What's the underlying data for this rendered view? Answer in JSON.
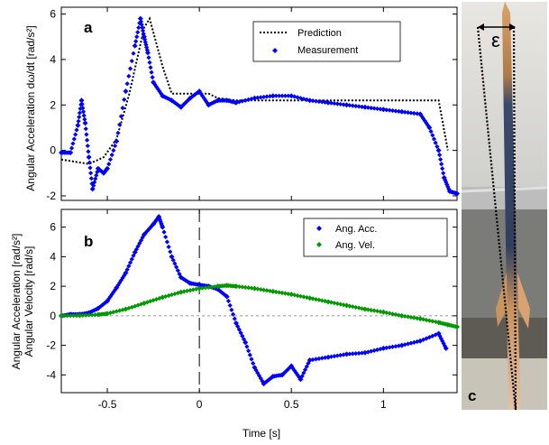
{
  "chart_data": [
    {
      "type": "line",
      "panel_label": "a",
      "xlabel": "",
      "ylabel": "Angular Acceleration dω/dt  [rad/s²]",
      "xlim": [
        -0.75,
        1.4
      ],
      "ylim": [
        -2.2,
        6.3
      ],
      "yticks": [
        -2,
        0,
        2,
        4,
        6
      ],
      "grid": false,
      "legend_position": "top-right",
      "series": [
        {
          "name": "Prediction",
          "style": "dotted-line",
          "color": "#000000",
          "x": [
            -0.75,
            -0.6,
            -0.52,
            -0.45,
            -0.38,
            -0.3,
            -0.27,
            -0.2,
            -0.15,
            -0.05,
            0.05,
            0.1,
            0.2,
            0.6,
            1.0,
            1.3,
            1.35
          ],
          "y": [
            -0.4,
            -0.6,
            -0.3,
            0.5,
            2.5,
            5.4,
            5.8,
            3.7,
            2.5,
            2.5,
            2.5,
            2.3,
            2.2,
            2.2,
            2.2,
            2.2,
            0.0
          ]
        },
        {
          "name": "Measurement",
          "style": "diamond-markers",
          "color": "#0000ff",
          "x": [
            -0.75,
            -0.7,
            -0.66,
            -0.64,
            -0.62,
            -0.6,
            -0.58,
            -0.55,
            -0.52,
            -0.5,
            -0.45,
            -0.4,
            -0.35,
            -0.32,
            -0.3,
            -0.28,
            -0.25,
            -0.2,
            -0.15,
            -0.1,
            -0.05,
            0.0,
            0.05,
            0.1,
            0.15,
            0.2,
            0.3,
            0.4,
            0.5,
            0.6,
            0.7,
            0.8,
            0.9,
            1.0,
            1.1,
            1.2,
            1.25,
            1.3,
            1.33,
            1.36,
            1.4
          ],
          "y": [
            -0.1,
            -0.1,
            1.1,
            2.2,
            1.2,
            -0.3,
            -1.7,
            -0.8,
            -1.0,
            -0.8,
            0.4,
            2.6,
            4.6,
            5.8,
            5.0,
            4.3,
            3.0,
            2.4,
            2.2,
            1.9,
            2.3,
            2.6,
            2.0,
            2.2,
            2.2,
            2.1,
            2.3,
            2.4,
            2.4,
            2.2,
            2.1,
            2.0,
            1.9,
            1.8,
            1.7,
            1.6,
            1.0,
            0.0,
            -1.2,
            -1.8,
            -1.9
          ]
        }
      ]
    },
    {
      "type": "scatter",
      "panel_label": "b",
      "xlabel": "Time [s]",
      "ylabel": "Angular Acceleration [rad/s²]\nAngular Velocity [rad/s]",
      "xlim": [
        -0.75,
        1.4
      ],
      "ylim": [
        -5.2,
        7.2
      ],
      "xticks": [
        -0.5,
        0,
        0.5,
        1
      ],
      "xtick_labels": [
        "-0.5",
        "0",
        "0.5",
        "1"
      ],
      "yticks": [
        -4,
        -2,
        0,
        2,
        4,
        6
      ],
      "grid": false,
      "reference_lines": {
        "y_zero": "dashed gray",
        "x_zero": "dashed black"
      },
      "legend_position": "top-right",
      "series": [
        {
          "name": "Ang. Acc.",
          "style": "diamond-markers",
          "color": "#0000ff",
          "x": [
            -0.75,
            -0.7,
            -0.65,
            -0.6,
            -0.55,
            -0.5,
            -0.45,
            -0.4,
            -0.35,
            -0.3,
            -0.25,
            -0.22,
            -0.2,
            -0.15,
            -0.1,
            -0.05,
            0.0,
            0.05,
            0.1,
            0.15,
            0.2,
            0.25,
            0.3,
            0.35,
            0.4,
            0.45,
            0.5,
            0.55,
            0.6,
            0.7,
            0.8,
            0.9,
            1.0,
            1.1,
            1.2,
            1.3,
            1.34
          ],
          "y": [
            0.0,
            0.1,
            0.1,
            0.2,
            0.5,
            1.0,
            1.9,
            2.9,
            4.3,
            5.5,
            6.2,
            6.7,
            6.0,
            4.0,
            2.6,
            2.2,
            2.1,
            2.0,
            1.8,
            1.3,
            -0.5,
            -1.8,
            -3.5,
            -4.6,
            -4.1,
            -4.0,
            -3.4,
            -4.3,
            -3.0,
            -2.8,
            -2.6,
            -2.5,
            -2.2,
            -2.0,
            -1.7,
            -1.2,
            -2.2
          ]
        },
        {
          "name": "Ang. Vel.",
          "style": "diamond-markers",
          "color": "#009900",
          "x": [
            -0.75,
            -0.65,
            -0.55,
            -0.5,
            -0.4,
            -0.3,
            -0.2,
            -0.1,
            0.0,
            0.1,
            0.15,
            0.2,
            0.3,
            0.4,
            0.5,
            0.6,
            0.7,
            0.8,
            0.9,
            1.0,
            1.1,
            1.2,
            1.3,
            1.35,
            1.4
          ],
          "y": [
            0.0,
            0.02,
            0.08,
            0.15,
            0.45,
            0.85,
            1.25,
            1.6,
            1.85,
            2.0,
            2.05,
            2.0,
            1.85,
            1.65,
            1.45,
            1.2,
            0.95,
            0.7,
            0.45,
            0.25,
            0.0,
            -0.2,
            -0.45,
            -0.6,
            -0.75
          ]
        }
      ]
    }
  ],
  "photo": {
    "panel_label": "c",
    "annotation": "ε"
  },
  "colors": {
    "measurement": "#0000ff",
    "prediction": "#000000",
    "ang_vel": "#009900"
  }
}
